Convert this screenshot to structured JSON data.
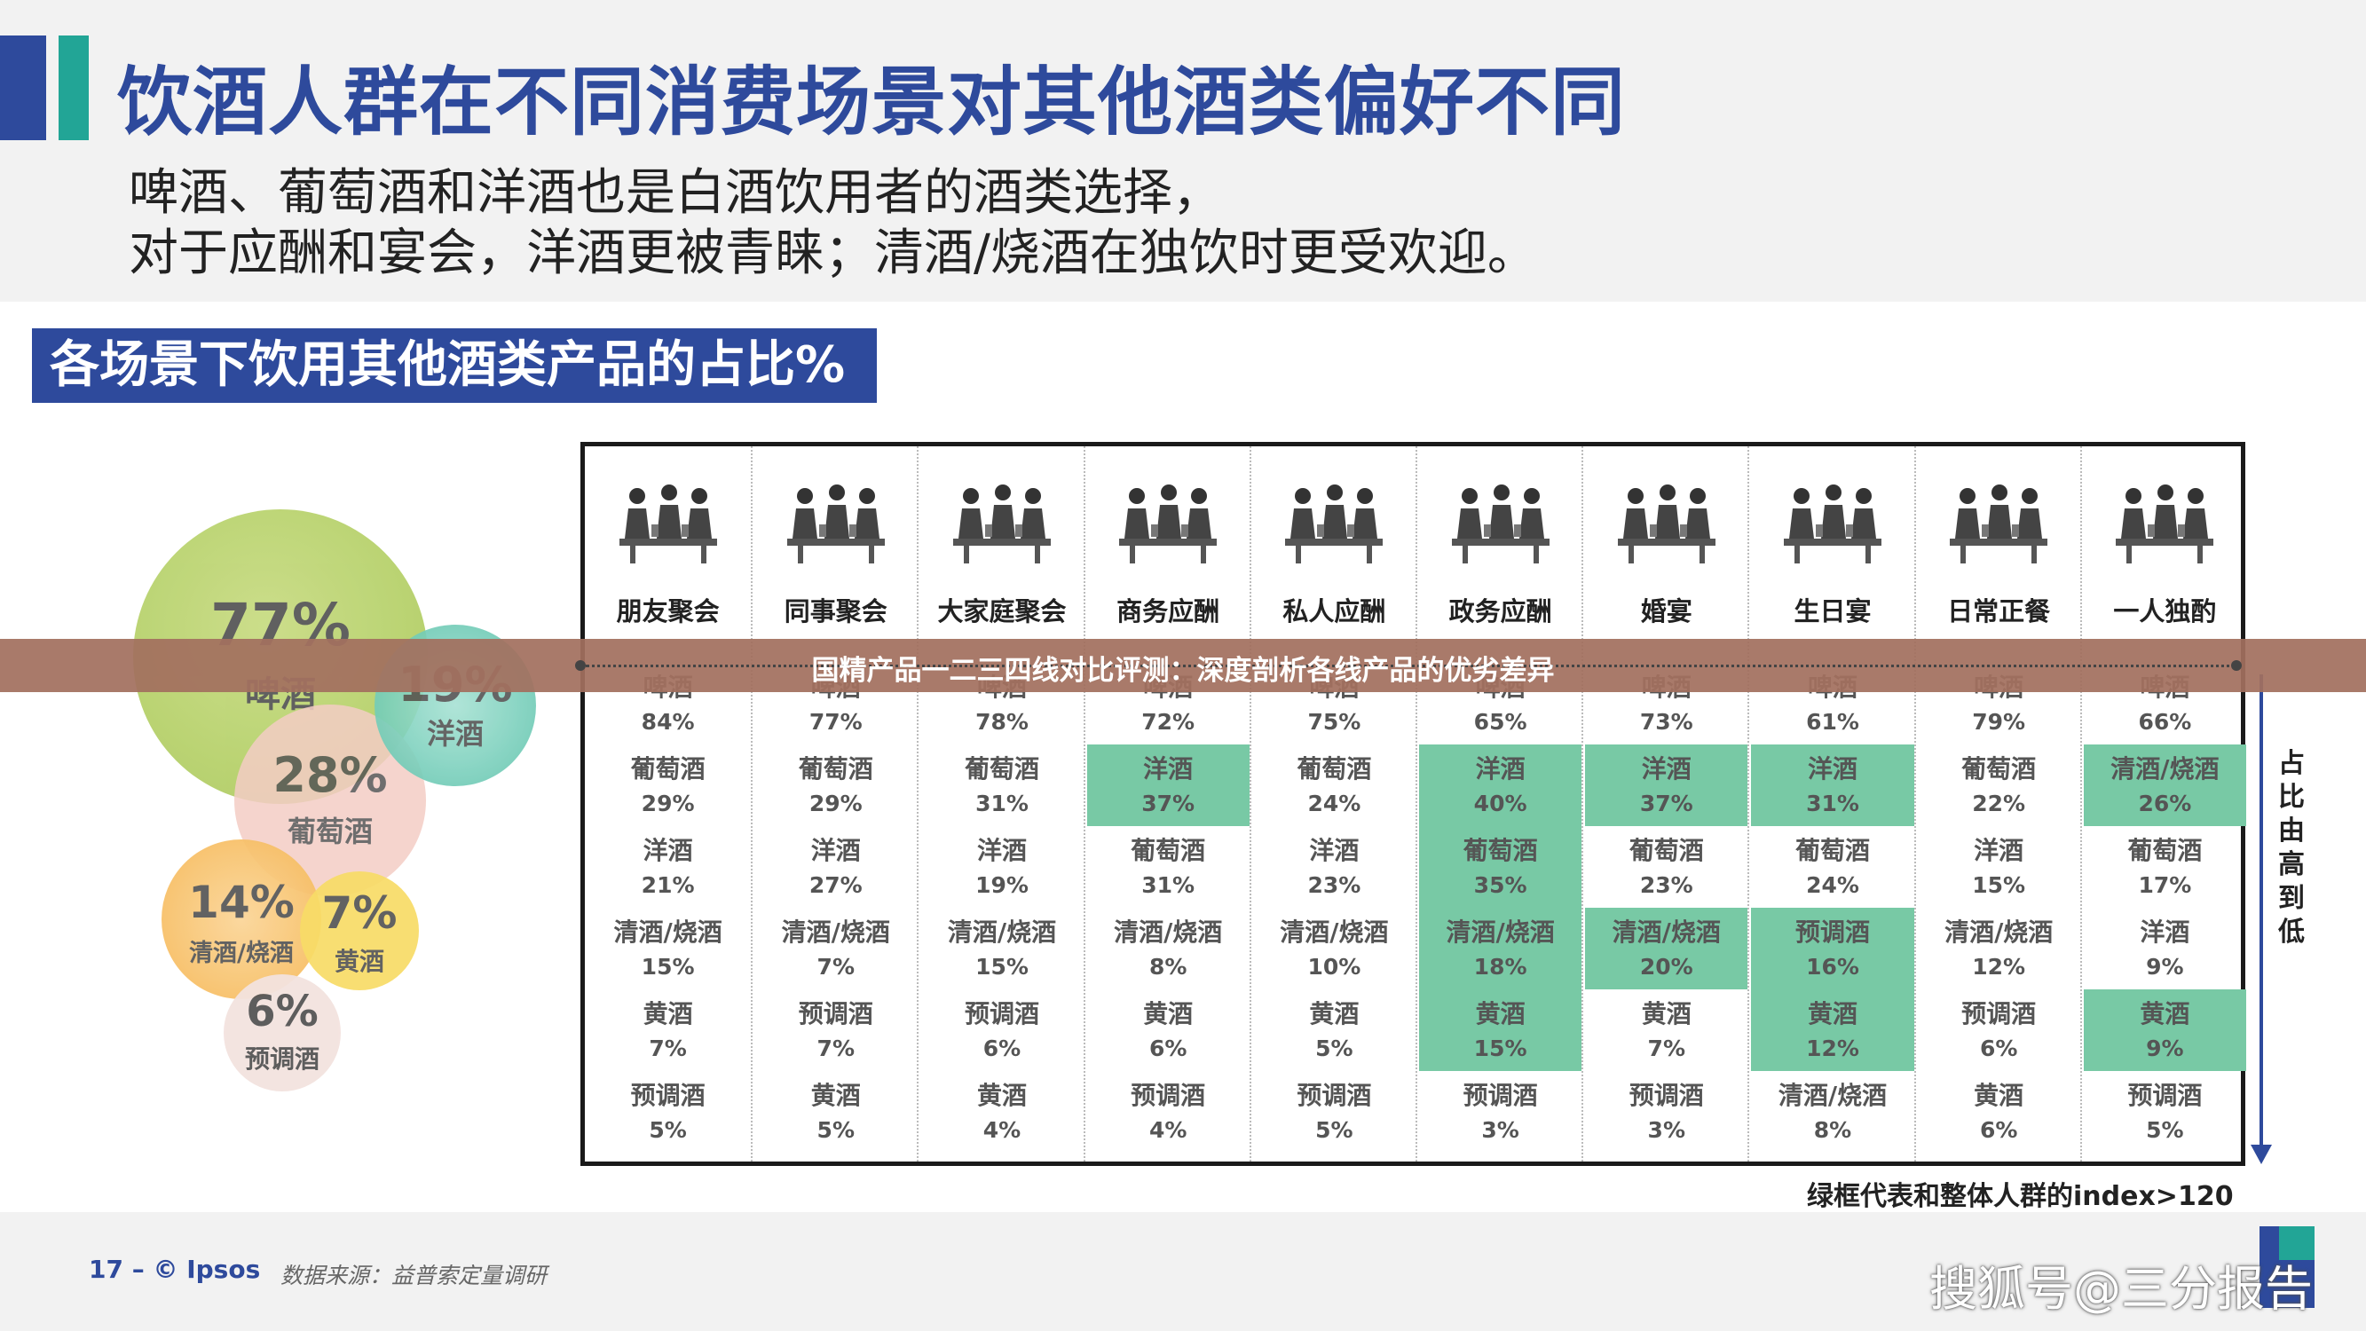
{
  "title": "饮酒人群在不同消费场景对其他酒类偏好不同",
  "subtitle_lines": [
    "啤酒、葡萄酒和洋酒也是白酒饮用者的酒类选择，",
    "对于应酬和宴会，洋酒更被青睐；清酒/烧酒在独饮时更受欢迎。"
  ],
  "section_title": "各场景下饮用其他酒类产品的占比%",
  "bubbles": [
    {
      "pct": "77%",
      "name": "啤酒",
      "color": "#b8d36b"
    },
    {
      "pct": "19%",
      "name": "洋酒",
      "color": "#5cc4b0"
    },
    {
      "pct": "28%",
      "name": "葡萄酒",
      "color": "#f4c9c0"
    },
    {
      "pct": "14%",
      "name": "清酒/烧酒",
      "color": "#f7b95a"
    },
    {
      "pct": "7%",
      "name": "黄酒",
      "color": "#f7db5a"
    },
    {
      "pct": "6%",
      "name": "预调酒",
      "color": "#f1ddd9"
    }
  ],
  "table": {
    "highlight_color": "#78c9a5",
    "columns": [
      {
        "scene": "朋友聚会",
        "icon": "friends-party-icon",
        "rows": [
          {
            "name": "啤酒",
            "value": "84%",
            "hl": false
          },
          {
            "name": "葡萄酒",
            "value": "29%",
            "hl": false
          },
          {
            "name": "洋酒",
            "value": "21%",
            "hl": false
          },
          {
            "name": "清酒/烧酒",
            "value": "15%",
            "hl": false
          },
          {
            "name": "黄酒",
            "value": "7%",
            "hl": false
          },
          {
            "name": "预调酒",
            "value": "5%",
            "hl": false
          }
        ]
      },
      {
        "scene": "同事聚会",
        "icon": "colleagues-party-icon",
        "rows": [
          {
            "name": "啤酒",
            "value": "77%",
            "hl": false
          },
          {
            "name": "葡萄酒",
            "value": "29%",
            "hl": false
          },
          {
            "name": "洋酒",
            "value": "27%",
            "hl": false
          },
          {
            "name": "清酒/烧酒",
            "value": "7%",
            "hl": false
          },
          {
            "name": "预调酒",
            "value": "7%",
            "hl": false
          },
          {
            "name": "黄酒",
            "value": "5%",
            "hl": false
          }
        ]
      },
      {
        "scene": "大家庭聚会",
        "icon": "family-gathering-icon",
        "rows": [
          {
            "name": "啤酒",
            "value": "78%",
            "hl": false
          },
          {
            "name": "葡萄酒",
            "value": "31%",
            "hl": false
          },
          {
            "name": "洋酒",
            "value": "19%",
            "hl": false
          },
          {
            "name": "清酒/烧酒",
            "value": "15%",
            "hl": false
          },
          {
            "name": "预调酒",
            "value": "6%",
            "hl": false
          },
          {
            "name": "黄酒",
            "value": "4%",
            "hl": false
          }
        ]
      },
      {
        "scene": "商务应酬",
        "icon": "business-dinner-icon",
        "rows": [
          {
            "name": "啤酒",
            "value": "72%",
            "hl": false
          },
          {
            "name": "洋酒",
            "value": "37%",
            "hl": true
          },
          {
            "name": "葡萄酒",
            "value": "31%",
            "hl": false
          },
          {
            "name": "清酒/烧酒",
            "value": "8%",
            "hl": false
          },
          {
            "name": "黄酒",
            "value": "6%",
            "hl": false
          },
          {
            "name": "预调酒",
            "value": "4%",
            "hl": false
          }
        ]
      },
      {
        "scene": "私人应酬",
        "icon": "private-entertaining-icon",
        "rows": [
          {
            "name": "啤酒",
            "value": "75%",
            "hl": false
          },
          {
            "name": "葡萄酒",
            "value": "24%",
            "hl": false
          },
          {
            "name": "洋酒",
            "value": "23%",
            "hl": false
          },
          {
            "name": "清酒/烧酒",
            "value": "10%",
            "hl": false
          },
          {
            "name": "黄酒",
            "value": "5%",
            "hl": false
          },
          {
            "name": "预调酒",
            "value": "5%",
            "hl": false
          }
        ]
      },
      {
        "scene": "政务应酬",
        "icon": "government-entertaining-icon",
        "rows": [
          {
            "name": "啤酒",
            "value": "65%",
            "hl": false
          },
          {
            "name": "洋酒",
            "value": "40%",
            "hl": true
          },
          {
            "name": "葡萄酒",
            "value": "35%",
            "hl": true
          },
          {
            "name": "清酒/烧酒",
            "value": "18%",
            "hl": true
          },
          {
            "name": "黄酒",
            "value": "15%",
            "hl": true
          },
          {
            "name": "预调酒",
            "value": "3%",
            "hl": false
          }
        ]
      },
      {
        "scene": "婚宴",
        "icon": "wedding-icon",
        "rows": [
          {
            "name": "啤酒",
            "value": "73%",
            "hl": false
          },
          {
            "name": "洋酒",
            "value": "37%",
            "hl": true
          },
          {
            "name": "葡萄酒",
            "value": "23%",
            "hl": false
          },
          {
            "name": "清酒/烧酒",
            "value": "20%",
            "hl": true
          },
          {
            "name": "黄酒",
            "value": "7%",
            "hl": false
          },
          {
            "name": "预调酒",
            "value": "3%",
            "hl": false
          }
        ]
      },
      {
        "scene": "生日宴",
        "icon": "birthday-icon",
        "rows": [
          {
            "name": "啤酒",
            "value": "61%",
            "hl": false
          },
          {
            "name": "洋酒",
            "value": "31%",
            "hl": true
          },
          {
            "name": "葡萄酒",
            "value": "24%",
            "hl": false
          },
          {
            "name": "预调酒",
            "value": "16%",
            "hl": true
          },
          {
            "name": "黄酒",
            "value": "12%",
            "hl": true
          },
          {
            "name": "清酒/烧酒",
            "value": "8%",
            "hl": false
          }
        ]
      },
      {
        "scene": "日常正餐",
        "icon": "daily-meal-icon",
        "rows": [
          {
            "name": "啤酒",
            "value": "79%",
            "hl": false
          },
          {
            "name": "葡萄酒",
            "value": "22%",
            "hl": false
          },
          {
            "name": "洋酒",
            "value": "15%",
            "hl": false
          },
          {
            "name": "清酒/烧酒",
            "value": "12%",
            "hl": false
          },
          {
            "name": "预调酒",
            "value": "6%",
            "hl": false
          },
          {
            "name": "黄酒",
            "value": "6%",
            "hl": false
          }
        ]
      },
      {
        "scene": "一人独酌",
        "icon": "solo-drinking-icon",
        "rows": [
          {
            "name": "啤酒",
            "value": "66%",
            "hl": false
          },
          {
            "name": "清酒/烧酒",
            "value": "26%",
            "hl": true
          },
          {
            "name": "葡萄酒",
            "value": "17%",
            "hl": false
          },
          {
            "name": "洋酒",
            "value": "9%",
            "hl": false
          },
          {
            "name": "黄酒",
            "value": "9%",
            "hl": true
          },
          {
            "name": "预调酒",
            "value": "5%",
            "hl": false
          }
        ]
      }
    ]
  },
  "rank_label": "占比由高到低",
  "legend_note": "绿框代表和整体人群的index>120",
  "footer": {
    "page": "17 –  © Ipsos",
    "source": "数据来源：益普索定量调研",
    "watermark": "搜狐号@三分报告"
  },
  "overlay_banner": "国精产品一二三四线对比评测：深度剖析各线产品的优劣差异"
}
